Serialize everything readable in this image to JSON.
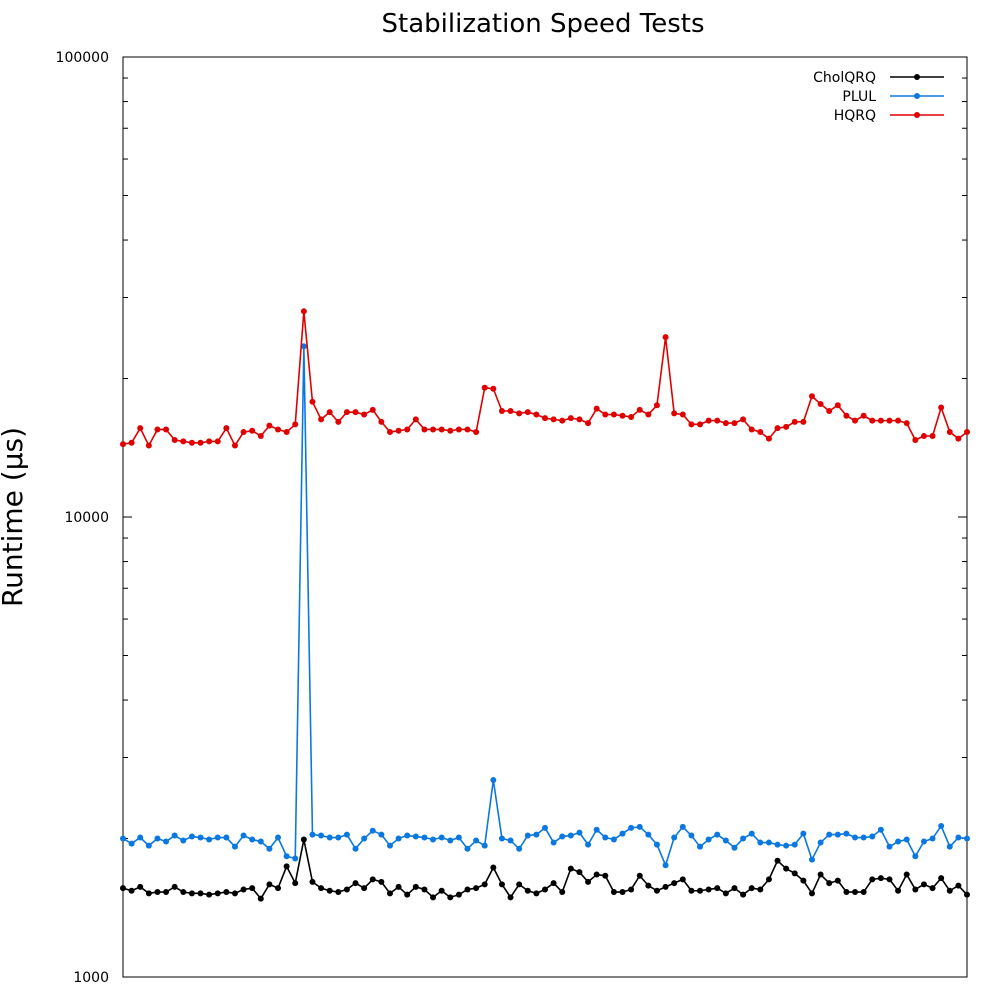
{
  "chart_data": {
    "type": "line",
    "title": "Stabilization Speed Tests",
    "xlabel": "",
    "ylabel": "Runtime (µs)",
    "yscale": "log",
    "ylim": [
      1000,
      100000
    ],
    "yticks": [
      {
        "value": 1000,
        "label": "1000"
      },
      {
        "value": 10000,
        "label": "10000"
      },
      {
        "value": 100000,
        "label": "100000"
      }
    ],
    "grid": false,
    "legend": "top-right",
    "series": [
      {
        "name": "CholQRQ",
        "color": "#000000",
        "values": [
          1560,
          1540,
          1570,
          1520,
          1530,
          1530,
          1570,
          1530,
          1520,
          1520,
          1510,
          1520,
          1530,
          1520,
          1550,
          1560,
          1480,
          1590,
          1560,
          1740,
          1600,
          1990,
          1610,
          1560,
          1540,
          1530,
          1550,
          1600,
          1560,
          1630,
          1610,
          1520,
          1570,
          1510,
          1570,
          1550,
          1490,
          1540,
          1490,
          1510,
          1550,
          1560,
          1590,
          1730,
          1590,
          1490,
          1590,
          1540,
          1520,
          1550,
          1600,
          1530,
          1720,
          1690,
          1610,
          1670,
          1660,
          1530,
          1530,
          1550,
          1660,
          1580,
          1540,
          1570,
          1600,
          1630,
          1540,
          1540,
          1550,
          1560,
          1520,
          1560,
          1510,
          1560,
          1550,
          1630,
          1790,
          1720,
          1680,
          1620,
          1520,
          1670,
          1600,
          1620,
          1530,
          1530,
          1530,
          1630,
          1640,
          1630,
          1540,
          1670,
          1550,
          1590,
          1560,
          1640,
          1540,
          1580,
          1510
        ]
      },
      {
        "name": "PLUL",
        "color": "#0a78e0",
        "values": [
          2000,
          1950,
          2010,
          1930,
          2000,
          1970,
          2030,
          1980,
          2020,
          2010,
          1990,
          2010,
          2010,
          1920,
          2030,
          1990,
          1970,
          1900,
          2010,
          1830,
          1810,
          23500,
          2040,
          2030,
          2010,
          2010,
          2040,
          1900,
          2000,
          2080,
          2040,
          1930,
          2000,
          2030,
          2020,
          2010,
          1990,
          2010,
          1980,
          2010,
          1900,
          1980,
          1930,
          2680,
          2000,
          1980,
          1900,
          2030,
          2040,
          2110,
          1960,
          2020,
          2030,
          2060,
          1940,
          2090,
          2010,
          1990,
          2050,
          2110,
          2120,
          2040,
          1940,
          1750,
          2010,
          2120,
          2030,
          1920,
          1990,
          2040,
          1980,
          1910,
          2000,
          2050,
          1960,
          1960,
          1940,
          1930,
          1940,
          2050,
          1800,
          1960,
          2040,
          2040,
          2050,
          2010,
          2010,
          2020,
          2090,
          1920,
          1970,
          1990,
          1830,
          1970,
          2000,
          2130,
          1920,
          2010,
          2000
        ]
      },
      {
        "name": "HQRQ",
        "color": "#e00000",
        "values": [
          14400,
          14500,
          15600,
          14300,
          15500,
          15500,
          14700,
          14600,
          14500,
          14500,
          14600,
          14600,
          15600,
          14300,
          15300,
          15400,
          15000,
          15800,
          15500,
          15300,
          15900,
          28000,
          17800,
          16300,
          16900,
          16100,
          16900,
          16900,
          16700,
          17100,
          16100,
          15300,
          15400,
          15500,
          16300,
          15500,
          15500,
          15500,
          15400,
          15500,
          15500,
          15300,
          19100,
          19000,
          17000,
          17000,
          16800,
          16900,
          16700,
          16400,
          16300,
          16200,
          16400,
          16300,
          16000,
          17200,
          16700,
          16700,
          16600,
          16500,
          17100,
          16700,
          17500,
          24600,
          16800,
          16700,
          15900,
          15900,
          16200,
          16200,
          16000,
          16000,
          16300,
          15500,
          15300,
          14800,
          15600,
          15700,
          16100,
          16100,
          18300,
          17600,
          17000,
          17500,
          16600,
          16200,
          16600,
          16200,
          16200,
          16200,
          16200,
          16000,
          14700,
          15000,
          15000,
          17300,
          15300,
          14800,
          15300
        ]
      }
    ]
  }
}
